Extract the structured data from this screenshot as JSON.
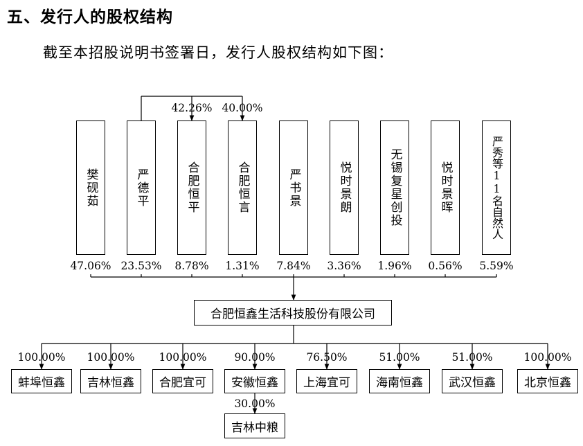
{
  "heading": "五、发行人的股权结构",
  "intro": "截至本招股说明书签署日，发行人股权结构如下图：",
  "shareholders": [
    {
      "name": "樊砚茹",
      "pct": "47.06%"
    },
    {
      "name": "严德平",
      "pct": "23.53%"
    },
    {
      "name": "合肥恒平",
      "pct": "8.78%"
    },
    {
      "name": "合肥恒言",
      "pct": "1.31%"
    },
    {
      "name": "严书景",
      "pct": "7.84%"
    },
    {
      "name": "悦时景朗",
      "pct": "3.36%"
    },
    {
      "name": "无锡复星创投",
      "pct": "1.96%"
    },
    {
      "name": "悦时景晖",
      "pct": "0.56%"
    },
    {
      "name": "严秀等11名自然人",
      "pct": "5.59%"
    }
  ],
  "control_links": [
    {
      "from": "严德平",
      "to": "合肥恒平",
      "pct": "42.26%"
    },
    {
      "from": "严德平",
      "to": "合肥恒言",
      "pct": "40.00%"
    }
  ],
  "issuer": "合肥恒鑫生活科技股份有限公司",
  "subsidiaries": [
    {
      "name": "蚌埠恒鑫",
      "pct": "100.00%"
    },
    {
      "name": "吉林恒鑫",
      "pct": "100.00%"
    },
    {
      "name": "合肥宜可",
      "pct": "100.00%"
    },
    {
      "name": "安徽恒鑫",
      "pct": "90.00%"
    },
    {
      "name": "上海宜可",
      "pct": "76.50%"
    },
    {
      "name": "海南恒鑫",
      "pct": "51.00%"
    },
    {
      "name": "武汉恒鑫",
      "pct": "51.00%"
    },
    {
      "name": "北京恒鑫",
      "pct": "100.00%"
    }
  ],
  "sub_subsidiary": {
    "parent": "安徽恒鑫",
    "name": "吉林中粮",
    "pct": "30.00%"
  }
}
